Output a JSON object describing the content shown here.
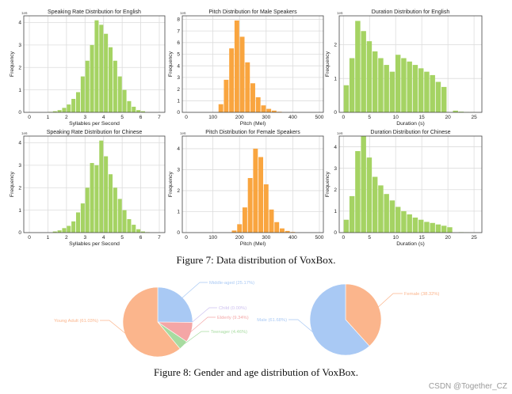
{
  "figure7": {
    "caption": "Figure 7: Data distribution of VoxBox."
  },
  "figure8": {
    "caption": "Figure 8: Gender and age distribution of VoxBox."
  },
  "watermark": "CSDN @Together_CZ",
  "colors": {
    "green": "#a5d363",
    "orange": "#f9a53f",
    "grid": "#dcdcdc",
    "blue_pie": "#a9c9f4",
    "orange_pie": "#fbb58c",
    "pink_pie": "#f4a6a6",
    "green_pie": "#a7dba0",
    "lavender_pie": "#cdc0ef"
  },
  "chart_data": [
    {
      "type": "bar",
      "title": "Speaking Rate Distribution for English",
      "xlabel": "Syllables per Second",
      "ylabel": "Frequency",
      "y_exponent": "1e6",
      "color": "green",
      "xlim": [
        -0.3,
        7.3
      ],
      "ylim": [
        0,
        4.3
      ],
      "xticks": [
        0,
        1,
        2,
        3,
        4,
        5,
        6,
        7
      ],
      "yticks": [
        0,
        1,
        2,
        3,
        4
      ],
      "bin_start": 1.0,
      "bin_width": 0.25,
      "values": [
        0.02,
        0.05,
        0.1,
        0.2,
        0.35,
        0.6,
        0.9,
        1.6,
        2.3,
        3.0,
        4.1,
        3.9,
        3.5,
        2.9,
        2.3,
        1.6,
        1.0,
        0.5,
        0.25,
        0.1,
        0.05
      ]
    },
    {
      "type": "bar",
      "title": "Pitch Distribution for Male Speakers",
      "xlabel": "Pitch (Mel)",
      "ylabel": "Frequency",
      "y_exponent": "1e6",
      "color": "orange",
      "xlim": [
        -15,
        515
      ],
      "ylim": [
        0,
        8.3
      ],
      "xticks": [
        0,
        100,
        200,
        300,
        400,
        500
      ],
      "yticks": [
        0,
        1,
        2,
        3,
        4,
        5,
        6,
        7,
        8
      ],
      "bin_start": 120,
      "bin_width": 20,
      "values": [
        0.7,
        2.8,
        5.5,
        7.9,
        6.5,
        4.3,
        2.5,
        1.3,
        0.6,
        0.3,
        0.15,
        0.05
      ]
    },
    {
      "type": "bar",
      "title": "Duration Distribution for English",
      "xlabel": "Duration (s)",
      "ylabel": "Frequency",
      "y_exponent": "1e6",
      "color": "green",
      "xlim": [
        -0.8,
        26.5
      ],
      "ylim": [
        0,
        2.85
      ],
      "xticks": [
        0,
        5,
        10,
        15,
        20,
        25
      ],
      "yticks": [
        0,
        1,
        2
      ],
      "bin_start": 0,
      "bin_width": 1.1,
      "values": [
        0.8,
        1.6,
        2.7,
        2.4,
        2.1,
        1.8,
        1.6,
        1.4,
        1.2,
        1.7,
        1.6,
        1.5,
        1.4,
        1.3,
        1.2,
        1.1,
        0.9,
        0.75,
        0.0,
        0.05,
        0.02,
        0.01,
        0.005
      ]
    },
    {
      "type": "bar",
      "title": "Speaking Rate Distribution for Chinese",
      "xlabel": "Syllables per Second",
      "ylabel": "Frequency",
      "y_exponent": "1e6",
      "color": "green",
      "xlim": [
        -0.3,
        7.3
      ],
      "ylim": [
        0,
        4.3
      ],
      "xticks": [
        0,
        1,
        2,
        3,
        4,
        5,
        6,
        7
      ],
      "yticks": [
        0,
        1,
        2,
        3,
        4
      ],
      "bin_start": 1.25,
      "bin_width": 0.25,
      "values": [
        0.05,
        0.1,
        0.2,
        0.3,
        0.5,
        0.9,
        1.3,
        2.0,
        3.1,
        3.0,
        4.1,
        3.4,
        2.6,
        2.0,
        1.5,
        1.0,
        0.6,
        0.35,
        0.15,
        0.05,
        0.02
      ]
    },
    {
      "type": "bar",
      "title": "Pitch Distribution for Female Speakers",
      "xlabel": "Pitch (Mel)",
      "ylabel": "Frequency",
      "y_exponent": "1e6",
      "color": "orange",
      "xlim": [
        -15,
        515
      ],
      "ylim": [
        0,
        4.6
      ],
      "xticks": [
        0,
        100,
        200,
        300,
        400,
        500
      ],
      "yticks": [
        0,
        1,
        2,
        3,
        4
      ],
      "bin_start": 170,
      "bin_width": 20,
      "values": [
        0.1,
        0.4,
        1.2,
        2.6,
        4.0,
        3.6,
        2.3,
        1.1,
        0.5,
        0.2,
        0.08,
        0.03
      ]
    },
    {
      "type": "bar",
      "title": "Duration Distribution for Chinese",
      "xlabel": "Duration (s)",
      "ylabel": "Frequency",
      "y_exponent": "1e6",
      "color": "green",
      "xlim": [
        -0.8,
        26.5
      ],
      "ylim": [
        0,
        4.5
      ],
      "xticks": [
        0,
        5,
        10,
        15,
        20,
        25
      ],
      "yticks": [
        0,
        1,
        2,
        3,
        4
      ],
      "bin_start": 0,
      "bin_width": 1.1,
      "values": [
        0.6,
        1.7,
        3.8,
        4.5,
        3.5,
        2.6,
        2.2,
        1.8,
        1.5,
        1.2,
        1.0,
        0.85,
        0.7,
        0.6,
        0.5,
        0.45,
        0.38,
        0.32,
        0.25,
        0.0,
        0.02,
        0.01,
        0.005
      ]
    },
    {
      "type": "pie",
      "title": "",
      "slices": [
        {
          "label": "Middle-aged (25.17%)",
          "value": 25.17,
          "color": "blue_pie"
        },
        {
          "label": "Child (0.00%)",
          "value": 0.0,
          "color": "lavender_pie"
        },
        {
          "label": "Elderly (9.34%)",
          "value": 9.34,
          "color": "pink_pie"
        },
        {
          "label": "Teenager (4.46%)",
          "value": 4.46,
          "color": "green_pie"
        },
        {
          "label": "Young Adult (61.03%)",
          "value": 61.03,
          "color": "orange_pie"
        }
      ]
    },
    {
      "type": "pie",
      "title": "",
      "slices": [
        {
          "label": "Female (38.32%)",
          "value": 38.32,
          "color": "orange_pie"
        },
        {
          "label": "Male (61.68%)",
          "value": 61.68,
          "color": "blue_pie"
        }
      ]
    }
  ]
}
